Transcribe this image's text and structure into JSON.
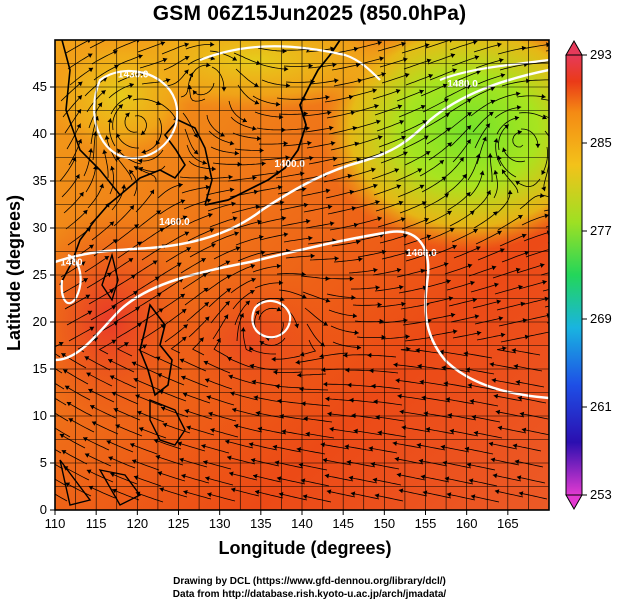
{
  "title": "GSM 06Z15Jun2025 (850.0hPa)",
  "chart_data": {
    "type": "map",
    "xlabel": "Longitude (degrees)",
    "ylabel": "Latitude  (degrees)",
    "xlim": [
      110,
      170
    ],
    "ylim": [
      0,
      50
    ],
    "xticks": [
      "110",
      "115",
      "120",
      "125",
      "130",
      "135",
      "140",
      "145",
      "150",
      "155",
      "160",
      "165"
    ],
    "yticks": [
      "0",
      "5",
      "10",
      "15",
      "20",
      "25",
      "30",
      "35",
      "40",
      "45"
    ],
    "colorbar": {
      "min": 253,
      "max": 293,
      "ticks": [
        "293",
        "285",
        "277",
        "269",
        "261",
        "253"
      ],
      "colors": [
        "#e23ad0",
        "#2b0fb0",
        "#1e4fe6",
        "#19b4e0",
        "#23d65a",
        "#9ee023",
        "#f3c21a",
        "#f48a14",
        "#ea3a18",
        "#e63a5a"
      ]
    },
    "contour_labels": [
      {
        "text": "1400.0",
        "lon": 138.5,
        "lat": 36.5
      },
      {
        "text": "1460.0",
        "lon": 124.5,
        "lat": 30.3
      },
      {
        "text": "1460.0",
        "lon": 154.5,
        "lat": 27.0
      },
      {
        "text": "1480.0",
        "lon": 159.5,
        "lat": 45.0
      },
      {
        "text": "1430.0",
        "lon": 119.5,
        "lat": 46.0
      },
      {
        "text": "1460",
        "lon": 112.0,
        "lat": 26.0
      }
    ],
    "grid": true,
    "grid_spacing_degrees": 2.5
  },
  "credits": {
    "line1": "Drawing by DCL (https://www.gfd-dennou.org/library/dcl/)",
    "line2": "Data from http://database.rish.kyoto-u.ac.jp/arch/jmadata/"
  }
}
